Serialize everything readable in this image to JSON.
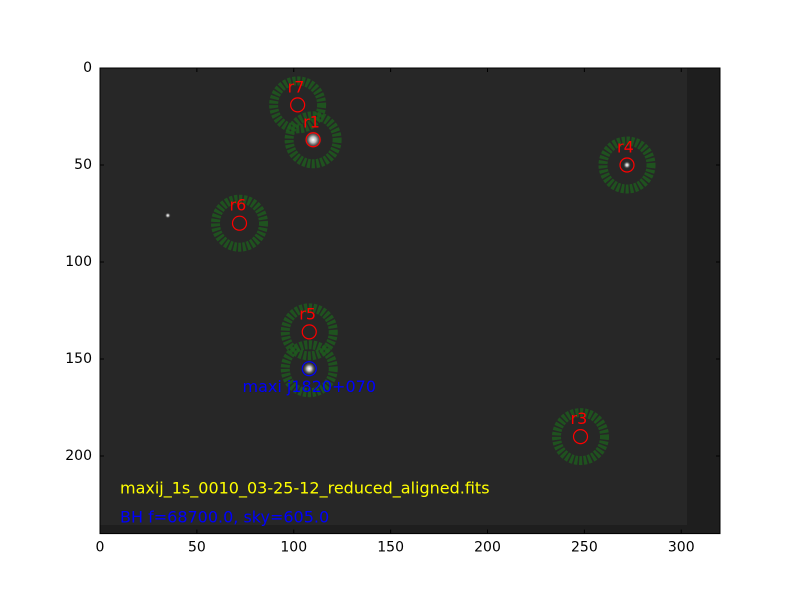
{
  "chart_data": {
    "type": "image",
    "xlim": [
      0,
      320
    ],
    "ylim": [
      240,
      0
    ],
    "xticks": [
      0,
      50,
      100,
      150,
      200,
      250,
      300
    ],
    "yticks": [
      0,
      50,
      100,
      150,
      200
    ],
    "sources": [
      {
        "name": "r7",
        "x": 102,
        "y": 19,
        "color": "#ff0000"
      },
      {
        "name": "r1",
        "x": 110,
        "y": 37,
        "color": "#ff0000"
      },
      {
        "name": "r4",
        "x": 272,
        "y": 50,
        "color": "#ff0000"
      },
      {
        "name": "r6",
        "x": 72,
        "y": 80,
        "color": "#ff0000"
      },
      {
        "name": "r5",
        "x": 108,
        "y": 136,
        "color": "#ff0000"
      },
      {
        "name": "r3",
        "x": 248,
        "y": 190,
        "color": "#ff0000"
      },
      {
        "name": "maxi j1820+070",
        "x": 108,
        "y": 155,
        "color": "#0000ff"
      }
    ],
    "file_label": "maxij_1s_0010_03-25-12_reduced_aligned.fits",
    "file_label_color": "#ffff00",
    "flux_label": "BH f=68700.0, sky=605.0",
    "flux_label_color": "#0000ff"
  }
}
